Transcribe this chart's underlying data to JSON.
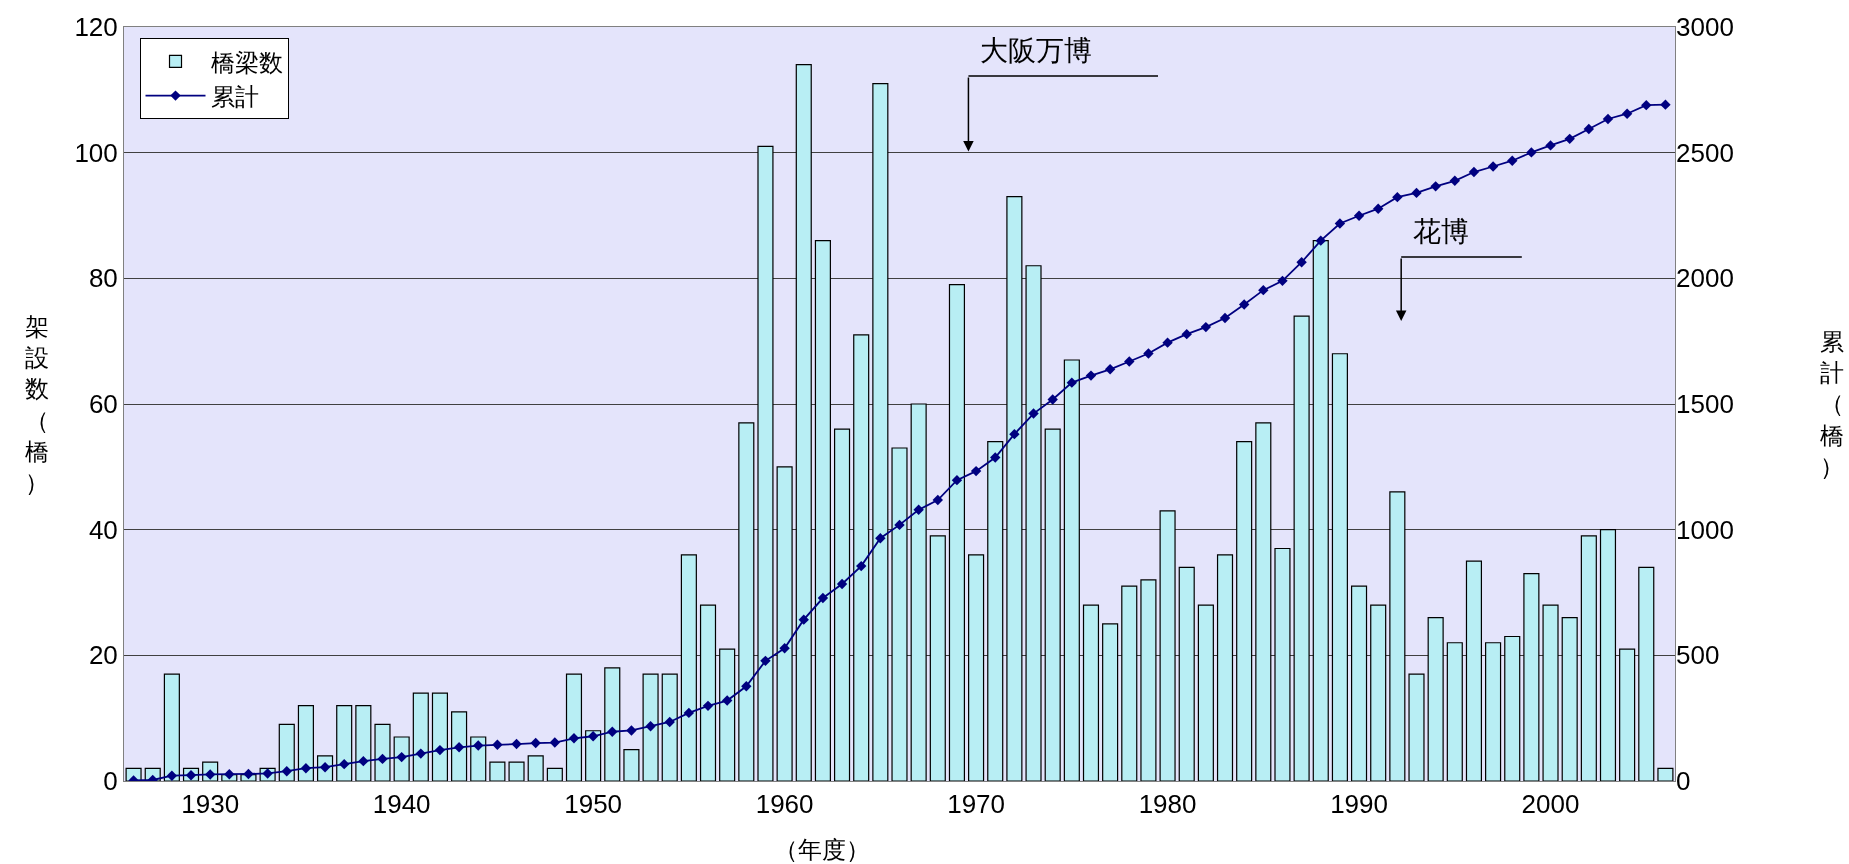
{
  "chart_data": {
    "type": "bar",
    "xlabel": "（年度）",
    "ylabel": "架設数（橋）",
    "y2label": "累計（橋）",
    "categories": [
      null,
      null,
      null,
      null,
      "1930",
      null,
      null,
      null,
      null,
      null,
      null,
      null,
      null,
      null,
      "1940",
      null,
      null,
      null,
      null,
      null,
      null,
      null,
      null,
      null,
      "1950",
      null,
      null,
      null,
      null,
      null,
      null,
      null,
      null,
      null,
      "1960",
      null,
      null,
      null,
      null,
      null,
      null,
      null,
      null,
      null,
      "1970",
      null,
      null,
      null,
      null,
      null,
      null,
      null,
      null,
      null,
      "1980",
      null,
      null,
      null,
      null,
      null,
      null,
      null,
      null,
      null,
      "1990",
      null,
      null,
      null,
      null,
      null,
      null,
      null,
      null,
      null,
      "2000",
      null,
      null,
      null,
      null,
      null,
      null
    ],
    "series": [
      {
        "name": "橋梁数",
        "color": "#b8eef4",
        "values": [
          2,
          2,
          17,
          2,
          3,
          1,
          1,
          2,
          9,
          12,
          4,
          12,
          12,
          9,
          7,
          14,
          14,
          11,
          7,
          3,
          3,
          4,
          2,
          17,
          8,
          18,
          5,
          17,
          17,
          36,
          28,
          21,
          57,
          101,
          50,
          114,
          86,
          56,
          71,
          111,
          53,
          60,
          39,
          79,
          36,
          54,
          93,
          82,
          56,
          67,
          28,
          25,
          31,
          32,
          43,
          34,
          28,
          36,
          54,
          57,
          37,
          74,
          86,
          68,
          31,
          28,
          46,
          17,
          26,
          22,
          35,
          22,
          23,
          33,
          28,
          26,
          39,
          40,
          21,
          34,
          2
        ]
      },
      {
        "name": "累計",
        "type": "line",
        "axis": "y2",
        "color": "#000080",
        "marker": "diamond",
        "line_style": "solid",
        "values": [
          2,
          4,
          21,
          23,
          26,
          27,
          28,
          30,
          39,
          51,
          55,
          67,
          79,
          88,
          95,
          109,
          123,
          134,
          141,
          144,
          147,
          151,
          153,
          170,
          178,
          196,
          201,
          218,
          235,
          271,
          299,
          320,
          377,
          478,
          528,
          642,
          728,
          784,
          855,
          966,
          1019,
          1079,
          1118,
          1197,
          1233,
          1287,
          1380,
          1462,
          1518,
          1585,
          1613,
          1638,
          1669,
          1701,
          1744,
          1778,
          1806,
          1842,
          1896,
          1953,
          1990,
          2064,
          2150,
          2218,
          2249,
          2277,
          2323,
          2340,
          2366,
          2388,
          2423,
          2445,
          2468,
          2501,
          2529,
          2555,
          2594,
          2634,
          2655,
          2689,
          2691
        ]
      }
    ],
    "ylim": [
      0,
      120
    ],
    "yticks": [
      0,
      20,
      40,
      60,
      80,
      100,
      120
    ],
    "y2lim": [
      0,
      3000
    ],
    "y2ticks": [
      0,
      500,
      1000,
      1500,
      2000,
      2500,
      3000
    ],
    "grid": "y",
    "legend": "top left",
    "annotations": [
      "大阪万博",
      "花博"
    ]
  }
}
